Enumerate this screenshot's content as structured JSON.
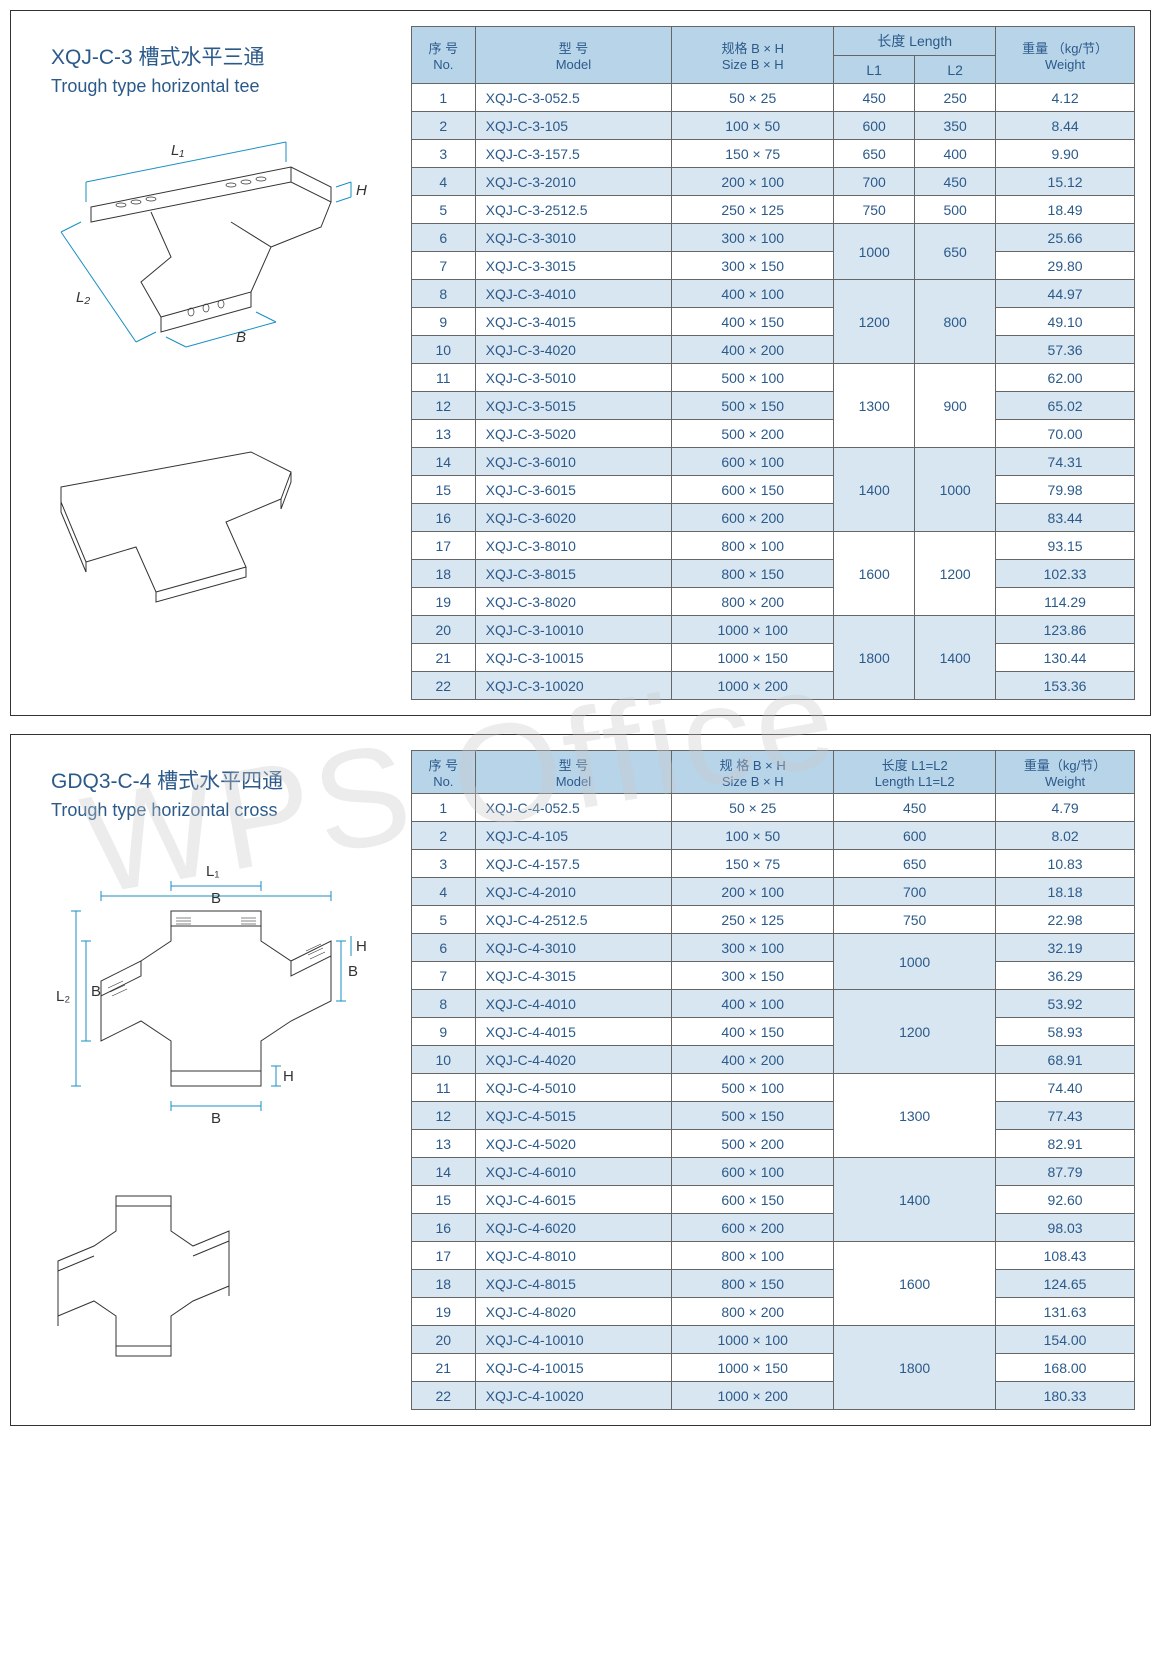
{
  "watermark": "WPS Office",
  "panel1": {
    "title": "XQJ-C-3 槽式水平三通",
    "subtitle": "Trough type horizontal tee",
    "diagram_labels": {
      "L1": "L₁",
      "L2": "L₂",
      "B": "B",
      "H": "H"
    },
    "table": {
      "head": {
        "no": {
          "cn": "序 号",
          "en": "No."
        },
        "model": {
          "cn": "型 号",
          "en": "Model"
        },
        "size": {
          "cn": "规格 B × H",
          "en": "Size  B × H"
        },
        "length": {
          "cn": "长度  Length",
          "sub1": "L1",
          "sub2": "L2"
        },
        "weight": {
          "cn": "重量 （kg/节）",
          "en": "Weight"
        }
      },
      "rows": [
        {
          "no": "1",
          "model": "XQJ-C-3-052.5",
          "size": "50 × 25",
          "L1": "450",
          "L2": "250",
          "w": "4.12",
          "span": 1,
          "shade": 0
        },
        {
          "no": "2",
          "model": "XQJ-C-3-105",
          "size": "100 × 50",
          "L1": "600",
          "L2": "350",
          "w": "8.44",
          "span": 1,
          "shade": 1
        },
        {
          "no": "3",
          "model": "XQJ-C-3-157.5",
          "size": "150 × 75",
          "L1": "650",
          "L2": "400",
          "w": "9.90",
          "span": 1,
          "shade": 0
        },
        {
          "no": "4",
          "model": "XQJ-C-3-2010",
          "size": "200 × 100",
          "L1": "700",
          "L2": "450",
          "w": "15.12",
          "span": 1,
          "shade": 1
        },
        {
          "no": "5",
          "model": "XQJ-C-3-2512.5",
          "size": "250 × 125",
          "L1": "750",
          "L2": "500",
          "w": "18.49",
          "span": 1,
          "shade": 0
        },
        {
          "no": "6",
          "model": "XQJ-C-3-3010",
          "size": "300 × 100",
          "L1": "1000",
          "L2": "650",
          "w": "25.66",
          "span": 2,
          "shade": 1
        },
        {
          "no": "7",
          "model": "XQJ-C-3-3015",
          "size": "300 × 150",
          "w": "29.80",
          "span": 0,
          "shade": 0
        },
        {
          "no": "8",
          "model": "XQJ-C-3-4010",
          "size": "400 × 100",
          "L1": "1200",
          "L2": "800",
          "w": "44.97",
          "span": 3,
          "shade": 1
        },
        {
          "no": "9",
          "model": "XQJ-C-3-4015",
          "size": "400 × 150",
          "w": "49.10",
          "span": 0,
          "shade": 0
        },
        {
          "no": "10",
          "model": "XQJ-C-3-4020",
          "size": "400 × 200",
          "w": "57.36",
          "span": 0,
          "shade": 1
        },
        {
          "no": "11",
          "model": "XQJ-C-3-5010",
          "size": "500 × 100",
          "L1": "1300",
          "L2": "900",
          "w": "62.00",
          "span": 3,
          "shade": 0
        },
        {
          "no": "12",
          "model": "XQJ-C-3-5015",
          "size": "500 × 150",
          "w": "65.02",
          "span": 0,
          "shade": 1
        },
        {
          "no": "13",
          "model": "XQJ-C-3-5020",
          "size": "500 × 200",
          "w": "70.00",
          "span": 0,
          "shade": 0
        },
        {
          "no": "14",
          "model": "XQJ-C-3-6010",
          "size": "600 × 100",
          "L1": "1400",
          "L2": "1000",
          "w": "74.31",
          "span": 3,
          "shade": 1
        },
        {
          "no": "15",
          "model": "XQJ-C-3-6015",
          "size": "600 × 150",
          "w": "79.98",
          "span": 0,
          "shade": 0
        },
        {
          "no": "16",
          "model": "XQJ-C-3-6020",
          "size": "600 × 200",
          "w": "83.44",
          "span": 0,
          "shade": 1
        },
        {
          "no": "17",
          "model": "XQJ-C-3-8010",
          "size": "800 × 100",
          "L1": "1600",
          "L2": "1200",
          "w": "93.15",
          "span": 3,
          "shade": 0
        },
        {
          "no": "18",
          "model": "XQJ-C-3-8015",
          "size": "800 × 150",
          "w": "102.33",
          "span": 0,
          "shade": 1
        },
        {
          "no": "19",
          "model": "XQJ-C-3-8020",
          "size": "800 × 200",
          "w": "114.29",
          "span": 0,
          "shade": 0
        },
        {
          "no": "20",
          "model": "XQJ-C-3-10010",
          "size": "1000 × 100",
          "L1": "1800",
          "L2": "1400",
          "w": "123.86",
          "span": 3,
          "shade": 1
        },
        {
          "no": "21",
          "model": "XQJ-C-3-10015",
          "size": "1000 × 150",
          "w": "130.44",
          "span": 0,
          "shade": 0
        },
        {
          "no": "22",
          "model": "XQJ-C-3-10020",
          "size": "1000 × 200",
          "w": "153.36",
          "span": 0,
          "shade": 1
        }
      ]
    }
  },
  "panel2": {
    "title": "GDQ3-C-4 槽式水平四通",
    "subtitle": "Trough type horizontal cross",
    "diagram_labels": {
      "L1": "L₁",
      "L2": "L₂",
      "B": "B",
      "H": "H"
    },
    "table": {
      "head": {
        "no": {
          "cn": "序 号",
          "en": "No."
        },
        "model": {
          "cn": "型 号",
          "en": "Model"
        },
        "size": {
          "cn": "规 格 B × H",
          "en": "Size  B × H"
        },
        "length": {
          "cn": "长度  L1=L2",
          "en": "Length L1=L2"
        },
        "weight": {
          "cn": "重量（kg/节）",
          "en": "Weight"
        }
      },
      "rows": [
        {
          "no": "1",
          "model": "XQJ-C-4-052.5",
          "size": "50 × 25",
          "L": "450",
          "w": "4.79",
          "span": 1,
          "shade": 0
        },
        {
          "no": "2",
          "model": "XQJ-C-4-105",
          "size": "100 × 50",
          "L": "600",
          "w": "8.02",
          "span": 1,
          "shade": 1
        },
        {
          "no": "3",
          "model": "XQJ-C-4-157.5",
          "size": "150 × 75",
          "L": "650",
          "w": "10.83",
          "span": 1,
          "shade": 0
        },
        {
          "no": "4",
          "model": "XQJ-C-4-2010",
          "size": "200 × 100",
          "L": "700",
          "w": "18.18",
          "span": 1,
          "shade": 1
        },
        {
          "no": "5",
          "model": "XQJ-C-4-2512.5",
          "size": "250 × 125",
          "L": "750",
          "w": "22.98",
          "span": 1,
          "shade": 0
        },
        {
          "no": "6",
          "model": "XQJ-C-4-3010",
          "size": "300 × 100",
          "L": "1000",
          "w": "32.19",
          "span": 2,
          "shade": 1
        },
        {
          "no": "7",
          "model": "XQJ-C-4-3015",
          "size": "300 × 150",
          "w": "36.29",
          "span": 0,
          "shade": 0
        },
        {
          "no": "8",
          "model": "XQJ-C-4-4010",
          "size": "400 × 100",
          "L": "1200",
          "w": "53.92",
          "span": 3,
          "shade": 1
        },
        {
          "no": "9",
          "model": "XQJ-C-4-4015",
          "size": "400 × 150",
          "w": "58.93",
          "span": 0,
          "shade": 0
        },
        {
          "no": "10",
          "model": "XQJ-C-4-4020",
          "size": "400 × 200",
          "w": "68.91",
          "span": 0,
          "shade": 1
        },
        {
          "no": "11",
          "model": "XQJ-C-4-5010",
          "size": "500 × 100",
          "L": "1300",
          "w": "74.40",
          "span": 3,
          "shade": 0
        },
        {
          "no": "12",
          "model": "XQJ-C-4-5015",
          "size": "500 × 150",
          "w": "77.43",
          "span": 0,
          "shade": 1
        },
        {
          "no": "13",
          "model": "XQJ-C-4-5020",
          "size": "500 × 200",
          "w": "82.91",
          "span": 0,
          "shade": 0
        },
        {
          "no": "14",
          "model": "XQJ-C-4-6010",
          "size": "600 × 100",
          "L": "1400",
          "w": "87.79",
          "span": 3,
          "shade": 1
        },
        {
          "no": "15",
          "model": "XQJ-C-4-6015",
          "size": "600 × 150",
          "w": "92.60",
          "span": 0,
          "shade": 0
        },
        {
          "no": "16",
          "model": "XQJ-C-4-6020",
          "size": "600 × 200",
          "w": "98.03",
          "span": 0,
          "shade": 1
        },
        {
          "no": "17",
          "model": "XQJ-C-4-8010",
          "size": "800 × 100",
          "L": "1600",
          "w": "108.43",
          "span": 3,
          "shade": 0
        },
        {
          "no": "18",
          "model": "XQJ-C-4-8015",
          "size": "800 × 150",
          "w": "124.65",
          "span": 0,
          "shade": 1
        },
        {
          "no": "19",
          "model": "XQJ-C-4-8020",
          "size": "800 × 200",
          "w": "131.63",
          "span": 0,
          "shade": 0
        },
        {
          "no": "20",
          "model": "XQJ-C-4-10010",
          "size": "1000 × 100",
          "L": "1800",
          "w": "154.00",
          "span": 3,
          "shade": 1
        },
        {
          "no": "21",
          "model": "XQJ-C-4-10015",
          "size": "1000 × 150",
          "w": "168.00",
          "span": 0,
          "shade": 0
        },
        {
          "no": "22",
          "model": "XQJ-C-4-10020",
          "size": "1000 × 200",
          "w": "180.33",
          "span": 0,
          "shade": 1
        }
      ]
    }
  }
}
